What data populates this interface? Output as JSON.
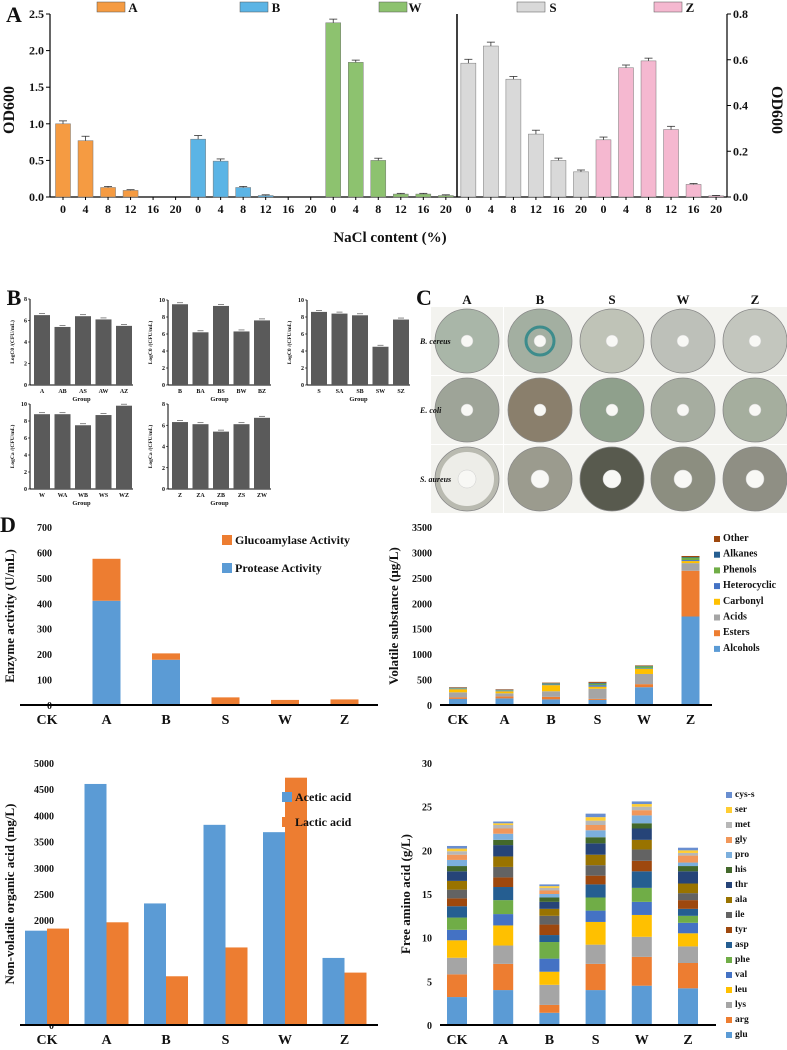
{
  "chart_data": [
    {
      "id": "A",
      "panel_label": "A",
      "type": "bar",
      "xlabel": "NaCl content (%)",
      "ylabel_left": "OD600",
      "ylabel_right": "OD600",
      "ylim_left": [
        0,
        2.5
      ],
      "yticks_left": [
        "0.0",
        "0.5",
        "1.0",
        "1.5",
        "2.0",
        "2.5"
      ],
      "ylim_right": [
        0,
        0.8
      ],
      "yticks_right": [
        "0.0",
        "0.2",
        "0.4",
        "0.6",
        "0.8"
      ],
      "categories": [
        "0",
        "4",
        "8",
        "12",
        "16",
        "20"
      ],
      "series": [
        {
          "name": "A",
          "axis": "left",
          "color": "#F59B42",
          "values": [
            1.0,
            0.77,
            0.13,
            0.09,
            0,
            0
          ],
          "err": [
            0.04,
            0.06,
            0.015,
            0.01,
            0,
            0
          ]
        },
        {
          "name": "B",
          "axis": "left",
          "color": "#5BB4E5",
          "values": [
            0.79,
            0.49,
            0.13,
            0.02,
            0,
            0
          ],
          "err": [
            0.05,
            0.03,
            0.015,
            0.01,
            0,
            0
          ]
        },
        {
          "name": "W",
          "axis": "left",
          "color": "#8DC26F",
          "values": [
            2.38,
            1.84,
            0.5,
            0.04,
            0.04,
            0.02
          ],
          "err": [
            0.05,
            0.03,
            0.03,
            0.01,
            0.01,
            0.01
          ]
        },
        {
          "name": "S",
          "axis": "right",
          "color": "#D9D9D9",
          "values": [
            0.585,
            0.66,
            0.515,
            0.275,
            0.16,
            0.11
          ],
          "err": [
            0.017,
            0.017,
            0.012,
            0.017,
            0.01,
            0.008
          ]
        },
        {
          "name": "Z",
          "axis": "right",
          "color": "#F5B8D0",
          "values": [
            0.25,
            0.565,
            0.595,
            0.295,
            0.055,
            0.005
          ],
          "err": [
            0.012,
            0.012,
            0.012,
            0.014,
            0.004,
            0.002
          ]
        }
      ]
    },
    {
      "id": "B",
      "panel_label": "B",
      "type": "bar",
      "color": "#5A5A5A",
      "xlabel": "Group",
      "subcharts": [
        {
          "ylabel": "LogC0 /(CFU/mL)",
          "ylim": [
            0,
            8
          ],
          "yticks": [
            "0",
            "2",
            "4",
            "6",
            "8"
          ],
          "categories": [
            "A",
            "AB",
            "AS",
            "AW",
            "AZ"
          ],
          "values": [
            6.5,
            5.4,
            6.4,
            6.1,
            5.5
          ]
        },
        {
          "ylabel": "LogC0 /(CFU/mL)",
          "ylim": [
            0,
            10
          ],
          "yticks": [
            "0",
            "2",
            "4",
            "6",
            "8",
            "10"
          ],
          "categories": [
            "B",
            "BA",
            "BS",
            "BW",
            "BZ"
          ],
          "values": [
            9.5,
            6.2,
            9.3,
            6.3,
            7.6
          ]
        },
        {
          "ylabel": "LogC0 /(CFU/mL)",
          "ylim": [
            0,
            10
          ],
          "yticks": [
            "0",
            "2",
            "4",
            "6",
            "8",
            "10"
          ],
          "categories": [
            "S",
            "SA",
            "SB",
            "SW",
            "SZ"
          ],
          "values": [
            8.6,
            8.4,
            8.2,
            4.5,
            7.7
          ]
        },
        {
          "ylabel": "LogCa /(CFU/mL)",
          "ylim": [
            0,
            10
          ],
          "yticks": [
            "0",
            "2",
            "4",
            "6",
            "8",
            "10"
          ],
          "categories": [
            "W",
            "WA",
            "WB",
            "WS",
            "WZ"
          ],
          "values": [
            8.8,
            8.8,
            7.5,
            8.7,
            9.8
          ]
        },
        {
          "ylabel": "LogCa /(CFU/mL)",
          "ylim": [
            0,
            8
          ],
          "yticks": [
            "0",
            "2",
            "4",
            "6",
            "8"
          ],
          "categories": [
            "Z",
            "ZA",
            "ZB",
            "ZS",
            "ZW"
          ],
          "values": [
            6.3,
            6.1,
            5.4,
            6.1,
            6.7
          ]
        }
      ]
    },
    {
      "id": "C",
      "panel_label": "C",
      "type": "table",
      "columns": [
        "A",
        "B",
        "S",
        "W",
        "Z"
      ],
      "rows": [
        "B. cereus",
        "E. coli",
        "S. aureus"
      ]
    },
    {
      "id": "D1",
      "panel_label": "D",
      "type": "bar",
      "stacked": true,
      "ylabel": "Enzyme activity (U/mL)",
      "ylim": [
        0,
        700
      ],
      "yticks": [
        "0",
        "100",
        "200",
        "300",
        "400",
        "500",
        "600",
        "700"
      ],
      "categories": [
        "CK",
        "A",
        "B",
        "S",
        "W",
        "Z"
      ],
      "legend_position": "top-right",
      "series": [
        {
          "name": "Protease Activity",
          "color": "#5B9BD5",
          "values": [
            0,
            410,
            178,
            0,
            0,
            0
          ]
        },
        {
          "name": "Glucoamylase Activity",
          "color": "#ED7D31",
          "values": [
            0,
            165,
            25,
            30,
            20,
            22
          ]
        }
      ]
    },
    {
      "id": "D2",
      "type": "bar",
      "stacked": true,
      "ylabel": "Volatile substance (μg/L)",
      "ylim": [
        0,
        3500
      ],
      "yticks": [
        "0",
        "500",
        "1000",
        "1500",
        "2000",
        "2500",
        "3000",
        "3500"
      ],
      "categories": [
        "CK",
        "A",
        "B",
        "S",
        "W",
        "Z"
      ],
      "legend_position": "right",
      "series": [
        {
          "name": "Alcohols",
          "color": "#5B9BD5",
          "values": [
            120,
            130,
            110,
            100,
            350,
            1740
          ]
        },
        {
          "name": "Esters",
          "color": "#ED7D31",
          "values": [
            30,
            40,
            50,
            20,
            60,
            900
          ]
        },
        {
          "name": "Acids",
          "color": "#A5A5A5",
          "values": [
            100,
            60,
            110,
            200,
            200,
            150
          ]
        },
        {
          "name": "Carbonyl",
          "color": "#FFC000",
          "values": [
            60,
            40,
            120,
            40,
            100,
            40
          ]
        },
        {
          "name": "Heterocyclic",
          "color": "#4472C4",
          "values": [
            10,
            10,
            15,
            30,
            10,
            20
          ]
        },
        {
          "name": "Phenols",
          "color": "#70AD47",
          "values": [
            10,
            10,
            15,
            30,
            40,
            50
          ]
        },
        {
          "name": "Alkanes",
          "color": "#255E91",
          "values": [
            10,
            10,
            10,
            15,
            10,
            10
          ]
        },
        {
          "name": "Other",
          "color": "#9E480E",
          "values": [
            10,
            10,
            10,
            20,
            10,
            20
          ]
        }
      ]
    },
    {
      "id": "D3",
      "type": "bar",
      "stacked": false,
      "ylabel": "Non-volatile organic acid (mg/L)",
      "ylim": [
        0,
        5000
      ],
      "yticks": [
        "0",
        "500",
        "1000",
        "1500",
        "2000",
        "2500",
        "3000",
        "3500",
        "4000",
        "4500",
        "5000"
      ],
      "categories": [
        "CK",
        "A",
        "B",
        "S",
        "W",
        "Z"
      ],
      "legend_position": "top-right",
      "series": [
        {
          "name": "Acetic acid",
          "color": "#5B9BD5",
          "values": [
            1800,
            4600,
            2320,
            3820,
            3680,
            1280
          ]
        },
        {
          "name": "Lactic acid",
          "color": "#ED7D31",
          "values": [
            1840,
            1960,
            930,
            1480,
            4720,
            1000
          ]
        }
      ]
    },
    {
      "id": "D4",
      "type": "bar",
      "stacked": true,
      "ylabel": "Free amino acid (g/L)",
      "ylim": [
        0,
        30
      ],
      "yticks": [
        "0",
        "5",
        "10",
        "15",
        "20",
        "25",
        "30"
      ],
      "categories": [
        "CK",
        "A",
        "B",
        "S",
        "W",
        "Z"
      ],
      "legend_position": "right",
      "series": [
        {
          "name": "glu",
          "color": "#5B9BD5",
          "values": [
            3.2,
            4.0,
            1.4,
            4.0,
            4.5,
            4.2
          ]
        },
        {
          "name": "arg",
          "color": "#ED7D31",
          "values": [
            2.6,
            3.0,
            0.9,
            3.0,
            3.3,
            2.9
          ]
        },
        {
          "name": "lys",
          "color": "#A5A5A5",
          "values": [
            1.9,
            2.1,
            2.3,
            2.2,
            2.3,
            1.9
          ]
        },
        {
          "name": "leu",
          "color": "#FFC000",
          "values": [
            2.0,
            2.3,
            1.5,
            2.6,
            2.5,
            1.5
          ]
        },
        {
          "name": "val",
          "color": "#4472C4",
          "values": [
            1.2,
            1.3,
            1.5,
            1.3,
            1.5,
            1.2
          ]
        },
        {
          "name": "phe",
          "color": "#70AD47",
          "values": [
            1.4,
            1.6,
            1.9,
            1.5,
            1.6,
            0.8
          ]
        },
        {
          "name": "asp",
          "color": "#255E91",
          "values": [
            1.3,
            1.5,
            0.8,
            1.5,
            1.9,
            0.8
          ]
        },
        {
          "name": "tyr",
          "color": "#9E480E",
          "values": [
            0.9,
            1.1,
            1.2,
            1.0,
            1.2,
            1.0
          ]
        },
        {
          "name": "ile",
          "color": "#636363",
          "values": [
            1.0,
            1.2,
            1.0,
            1.2,
            1.3,
            0.8
          ]
        },
        {
          "name": "ala",
          "color": "#997300",
          "values": [
            1.0,
            1.2,
            0.8,
            1.2,
            1.1,
            1.1
          ]
        },
        {
          "name": "thr",
          "color": "#264478",
          "values": [
            1.1,
            1.3,
            0.8,
            1.3,
            1.3,
            1.4
          ]
        },
        {
          "name": "his",
          "color": "#43682B",
          "values": [
            0.6,
            0.6,
            0.5,
            0.7,
            0.6,
            0.6
          ]
        },
        {
          "name": "pro",
          "color": "#7CAFDD",
          "values": [
            0.7,
            0.7,
            0.4,
            0.8,
            0.9,
            0.4
          ]
        },
        {
          "name": "gly",
          "color": "#F1975A",
          "values": [
            0.6,
            0.6,
            0.4,
            0.6,
            0.6,
            0.8
          ]
        },
        {
          "name": "met",
          "color": "#B7B7B7",
          "values": [
            0.4,
            0.4,
            0.3,
            0.5,
            0.4,
            0.3
          ]
        },
        {
          "name": "ser",
          "color": "#FFCD33",
          "values": [
            0.3,
            0.2,
            0.2,
            0.4,
            0.3,
            0.3
          ]
        },
        {
          "name": "cys-s",
          "color": "#698ED0",
          "values": [
            0.3,
            0.2,
            0.2,
            0.4,
            0.3,
            0.3
          ]
        }
      ]
    }
  ]
}
